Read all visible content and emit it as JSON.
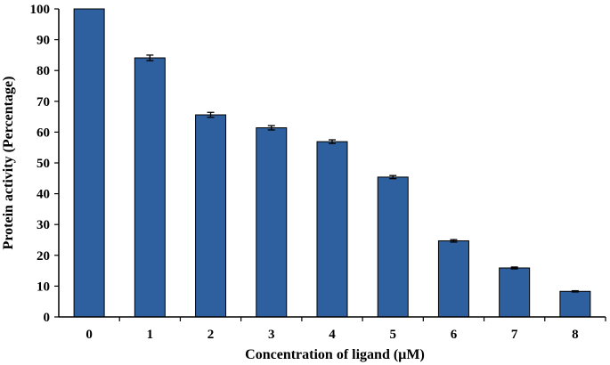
{
  "chart_data": {
    "type": "bar",
    "title": "",
    "xlabel": "Concentration of ligand (µM)",
    "ylabel": "Protein activity (Percentage)",
    "categories": [
      "0",
      "1",
      "2",
      "3",
      "4",
      "5",
      "6",
      "7",
      "8"
    ],
    "values": [
      100,
      84.1,
      65.6,
      61.4,
      56.9,
      45.4,
      24.7,
      15.9,
      8.3
    ],
    "errors": [
      0,
      0.9,
      0.8,
      0.7,
      0.6,
      0.5,
      0.4,
      0.3,
      0.2
    ],
    "ylim": [
      0,
      100
    ],
    "yticks": [
      0,
      10,
      20,
      30,
      40,
      50,
      60,
      70,
      80,
      90,
      100
    ],
    "grid": false,
    "legend": "none",
    "bar_color": "#2e5f9e"
  }
}
